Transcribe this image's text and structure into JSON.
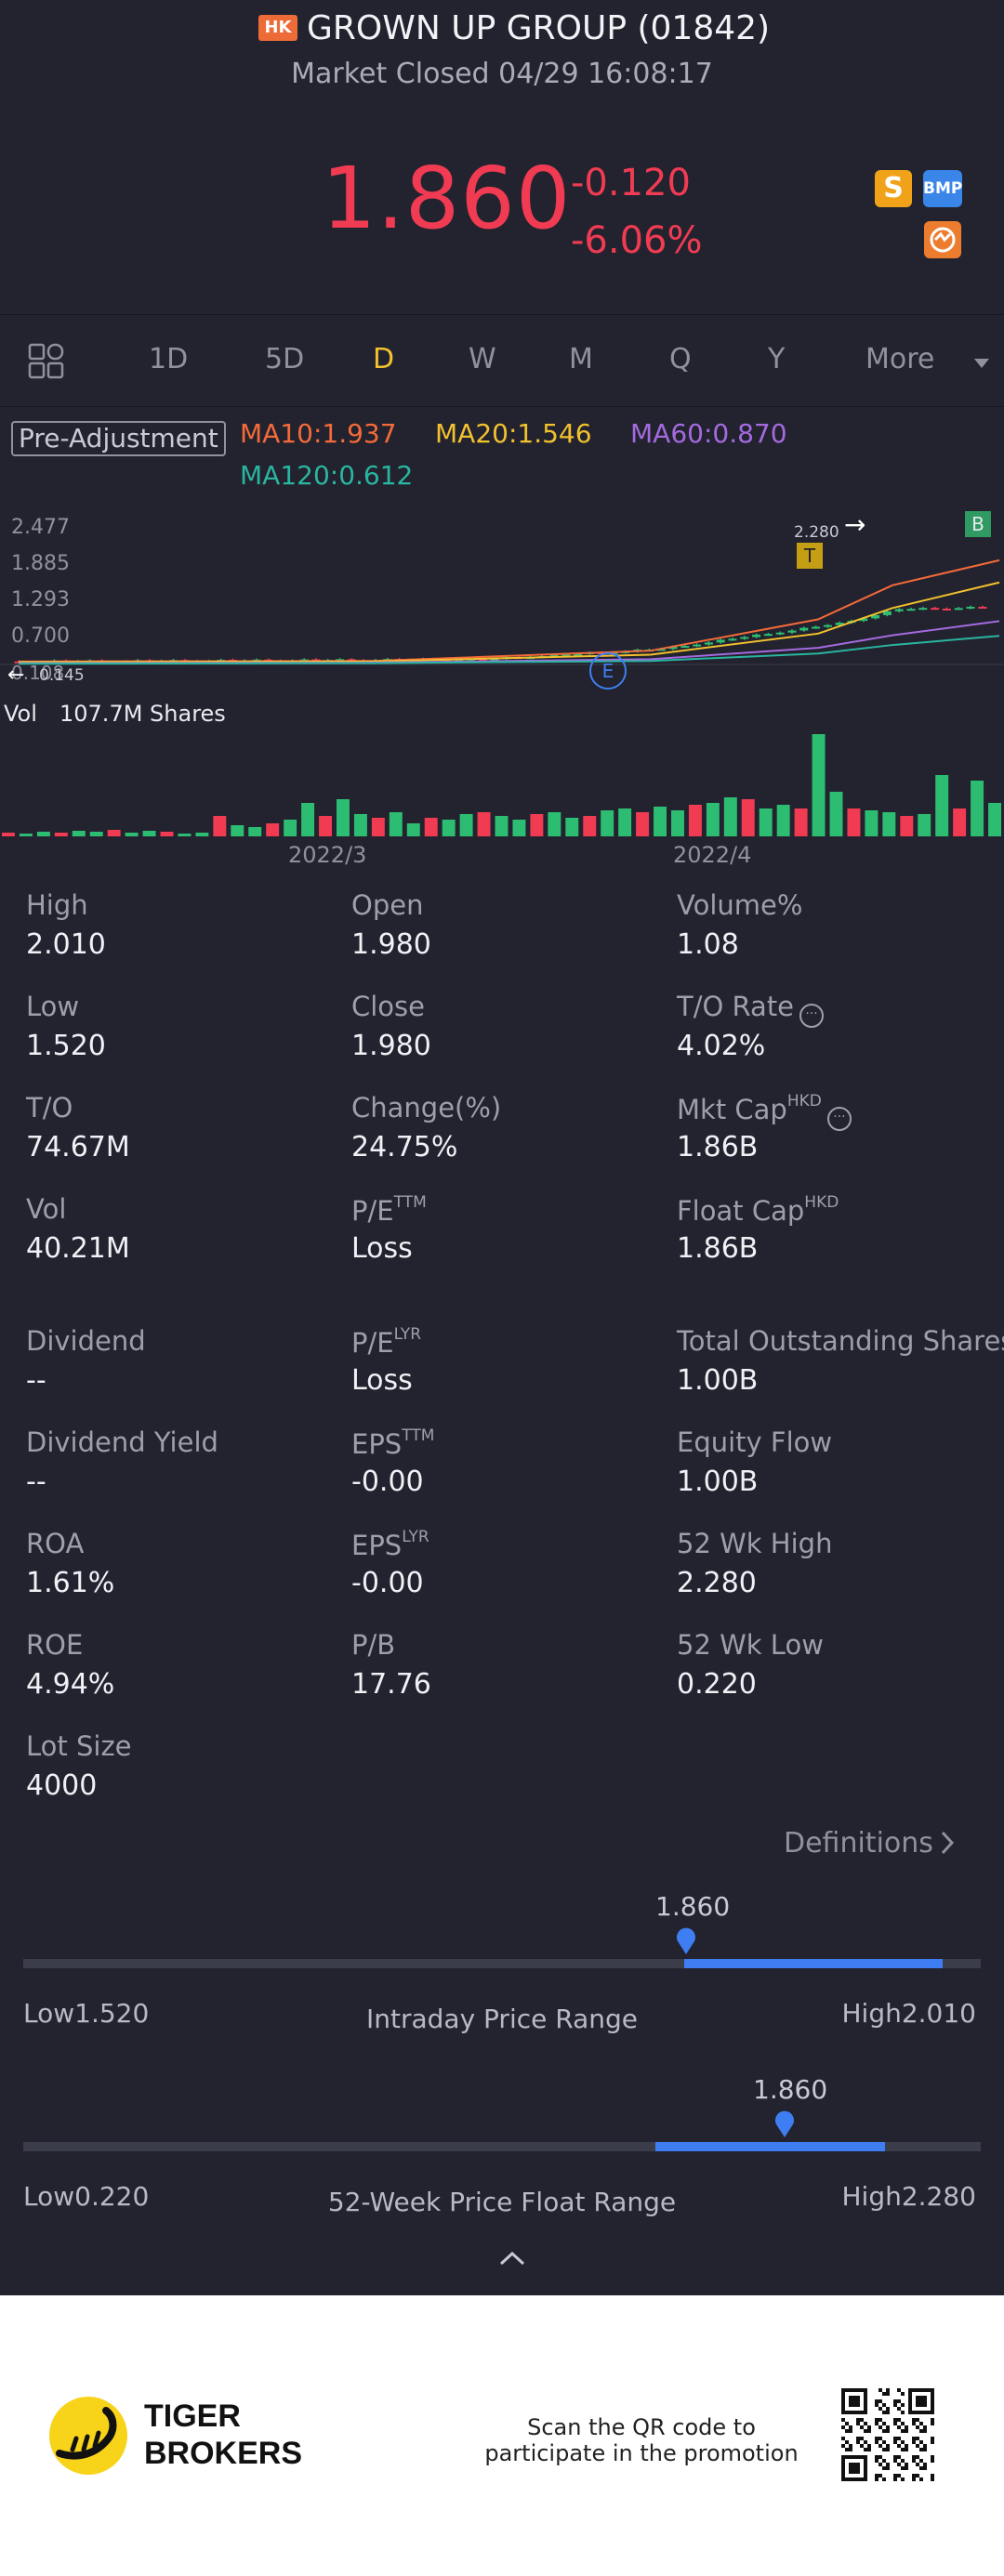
{
  "header": {
    "market_badge": "HK",
    "title": "GROWN UP GROUP (01842)",
    "status": "Market Closed 04/29 16:08:17",
    "price": "1.860",
    "change": "-0.120",
    "change_pct": "-6.06%",
    "badges": [
      "S",
      "BMP"
    ]
  },
  "periods": {
    "tabs": [
      "1D",
      "5D",
      "D",
      "W",
      "M",
      "Q",
      "Y",
      "More"
    ],
    "active": "D"
  },
  "chart": {
    "adjustment": "Pre-Adjustment",
    "ma10": "MA10:1.937",
    "ma20": "MA20:1.546",
    "ma60": "MA60:0.870",
    "ma120": "MA120:0.612",
    "y_ticks": [
      "2.477",
      "1.885",
      "1.293",
      "0.700",
      "0.108"
    ],
    "low_marker": "0.145",
    "high_marker": "2.280",
    "marker_t": "T",
    "marker_b": "B",
    "marker_e": "E",
    "vol_label": "Vol",
    "vol_value": "107.7M Shares",
    "x_labels": [
      "2022/3",
      "2022/4"
    ],
    "colors": {
      "up": "#2dbd72",
      "down": "#f03b53",
      "ma10": "#f56a3a",
      "ma20": "#f2c12e",
      "ma60": "#a46ae0",
      "ma120": "#2ab5a0"
    }
  },
  "chart_data": {
    "type": "candlestick",
    "title": "",
    "ylim": [
      0.108,
      2.477
    ],
    "x_labels": [
      "2022/3",
      "2022/4"
    ],
    "series": [
      {
        "name": "MA10",
        "value": 1.937
      },
      {
        "name": "MA20",
        "value": 1.546
      },
      {
        "name": "MA60",
        "value": 0.87
      },
      {
        "name": "MA120",
        "value": 0.612
      }
    ],
    "volume_label": "107.7M Shares"
  },
  "stats": {
    "col1": [
      {
        "label": "High",
        "value": "2.010"
      },
      {
        "label": "Low",
        "value": "1.520"
      },
      {
        "label": "T/O",
        "value": "74.67M"
      },
      {
        "label": "Vol",
        "value": "40.21M"
      },
      {
        "label": "Dividend",
        "value": "--"
      },
      {
        "label": "Dividend Yield",
        "value": "--"
      },
      {
        "label": "ROA",
        "value": "1.61%"
      },
      {
        "label": "ROE",
        "value": "4.94%"
      },
      {
        "label": "Lot Size",
        "value": "4000"
      }
    ],
    "col2": [
      {
        "label": "Open",
        "sup": "",
        "value": "1.980"
      },
      {
        "label": "Close",
        "sup": "",
        "value": "1.980"
      },
      {
        "label": "Change(%)",
        "sup": "",
        "value": "24.75%"
      },
      {
        "label": "P/E",
        "sup": "TTM",
        "value": "Loss"
      },
      {
        "label": "P/E",
        "sup": "LYR",
        "value": "Loss"
      },
      {
        "label": "EPS",
        "sup": "TTM",
        "value": "-0.00"
      },
      {
        "label": "EPS",
        "sup": "LYR",
        "value": "-0.00"
      },
      {
        "label": "P/B",
        "sup": "",
        "value": "17.76"
      }
    ],
    "col3": [
      {
        "label": "Volume%",
        "sup": "",
        "value": "1.08"
      },
      {
        "label": "T/O Rate",
        "sup": "",
        "value": "4.02%"
      },
      {
        "label": "Mkt Cap",
        "sup": "HKD",
        "value": "1.86B"
      },
      {
        "label": "Float Cap",
        "sup": "HKD",
        "value": "1.86B"
      },
      {
        "label": "Total Outstanding Shares",
        "sup": "",
        "value": "1.00B"
      },
      {
        "label": "Equity Flow",
        "sup": "",
        "value": "1.00B"
      },
      {
        "label": "52 Wk High",
        "sup": "",
        "value": "2.280"
      },
      {
        "label": "52 Wk Low",
        "sup": "",
        "value": "0.220"
      }
    ]
  },
  "definitions_link": "Definitions",
  "intraday": {
    "current": "1.860",
    "low": "Low1.520",
    "high": "High2.010",
    "title": "Intraday Price Range",
    "position": 0.69
  },
  "week52": {
    "current": "1.860",
    "low": "Low0.220",
    "high": "High2.280",
    "title": "52-Week Price Float Range",
    "position": 0.8
  },
  "footer": {
    "brand_line1": "TIGER",
    "brand_line2": "BROKERS",
    "promo_line1": "Scan the QR code to",
    "promo_line2": "participate in the promotion"
  }
}
